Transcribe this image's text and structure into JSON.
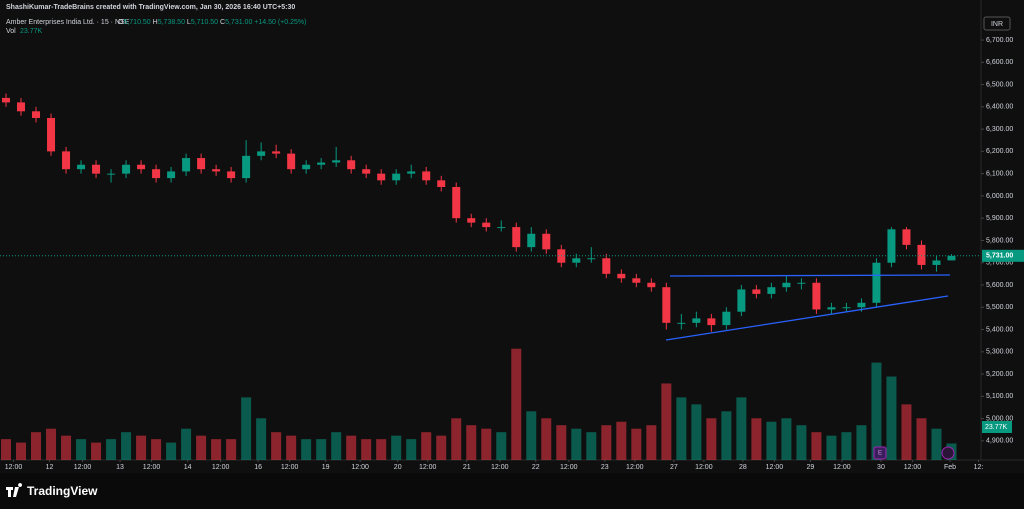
{
  "watermark": "ShashiKumar-TradeBrains created with TradingView.com, Jan 30, 2026 16:40 UTC+5:30",
  "chart_data": {
    "type": "candlestick",
    "title": "Amber Enterprises India Ltd. · 15 · NSE",
    "legend_values": [
      {
        "label": "O",
        "text": "5,710.50"
      },
      {
        "label": "H",
        "text": "5,738.50"
      },
      {
        "label": "L",
        "text": "5,710.50"
      },
      {
        "label": "C",
        "text": "5,731.00"
      }
    ],
    "change": "+14.50 (+0.25%)",
    "volume_title": "Vol",
    "volume_text": "23.77K",
    "currency": "INR",
    "up_color": "#089981",
    "down_color": "#f23645",
    "open": [
      6440,
      6420,
      6380,
      6350,
      6200,
      6120,
      6140,
      6100,
      6100,
      6140,
      6120,
      6080,
      6110,
      6170,
      6120,
      6110,
      6080,
      6180,
      6200,
      6190,
      6120,
      6140,
      6150,
      6160,
      6120,
      6100,
      6070,
      6100,
      6110,
      6070,
      6040,
      5900,
      5880,
      5860,
      5860,
      5770,
      5830,
      5760,
      5700,
      5720,
      5720,
      5650,
      5630,
      5610,
      5590,
      5430,
      5430,
      5450,
      5420,
      5480,
      5580,
      5560,
      5590,
      5610,
      5610,
      5490,
      5500,
      5500,
      5520,
      5700,
      5850,
      5780,
      5690,
      5710.5
    ],
    "high": [
      6460,
      6440,
      6400,
      6370,
      6220,
      6160,
      6160,
      6120,
      6160,
      6160,
      6140,
      6130,
      6190,
      6190,
      6140,
      6130,
      6250,
      6240,
      6230,
      6210,
      6160,
      6170,
      6220,
      6180,
      6140,
      6120,
      6120,
      6140,
      6130,
      6090,
      6060,
      5920,
      5900,
      5890,
      5880,
      5860,
      5850,
      5780,
      5740,
      5770,
      5740,
      5670,
      5650,
      5630,
      5610,
      5470,
      5480,
      5470,
      5500,
      5600,
      5600,
      5610,
      5640,
      5630,
      5630,
      5520,
      5520,
      5540,
      5720,
      5860,
      5860,
      5800,
      5730,
      5738.5
    ],
    "low": [
      6400,
      6360,
      6330,
      6180,
      6100,
      6100,
      6080,
      6060,
      6080,
      6100,
      6060,
      6060,
      6090,
      6100,
      6090,
      6060,
      6060,
      6160,
      6170,
      6100,
      6100,
      6120,
      6130,
      6100,
      6080,
      6050,
      6050,
      6080,
      6050,
      6020,
      5880,
      5860,
      5840,
      5840,
      5750,
      5750,
      5740,
      5680,
      5680,
      5700,
      5630,
      5610,
      5590,
      5570,
      5400,
      5400,
      5410,
      5390,
      5400,
      5460,
      5540,
      5540,
      5570,
      5580,
      5470,
      5470,
      5480,
      5480,
      5500,
      5680,
      5760,
      5670,
      5660,
      5710.5
    ],
    "close": [
      6420,
      6380,
      6350,
      6200,
      6120,
      6140,
      6100,
      6100,
      6140,
      6120,
      6080,
      6110,
      6170,
      6120,
      6110,
      6080,
      6180,
      6200,
      6190,
      6120,
      6140,
      6150,
      6160,
      6120,
      6100,
      6070,
      6100,
      6110,
      6070,
      6040,
      5900,
      5880,
      5860,
      5860,
      5770,
      5830,
      5760,
      5700,
      5720,
      5720,
      5650,
      5630,
      5610,
      5590,
      5430,
      5430,
      5450,
      5420,
      5480,
      5580,
      5560,
      5590,
      5610,
      5610,
      5490,
      5500,
      5500,
      5520,
      5700,
      5850,
      5780,
      5690,
      5710,
      5731
    ],
    "volume": [
      30,
      25,
      40,
      45,
      35,
      30,
      25,
      30,
      40,
      35,
      30,
      25,
      45,
      35,
      30,
      30,
      90,
      60,
      40,
      35,
      30,
      30,
      40,
      35,
      30,
      30,
      35,
      30,
      40,
      35,
      60,
      50,
      45,
      40,
      160,
      70,
      60,
      50,
      45,
      40,
      50,
      55,
      45,
      50,
      110,
      90,
      80,
      60,
      70,
      90,
      60,
      55,
      60,
      50,
      40,
      35,
      40,
      50,
      140,
      120,
      80,
      60,
      45,
      23.77
    ],
    "vlim": [
      0,
      230
    ],
    "last_price": {
      "value": 5731,
      "label": "5,731.00"
    },
    "ylim": [
      4814,
      6799
    ],
    "yticks": [
      {
        "value": 4900,
        "label": "4,900.00"
      },
      {
        "value": 5000,
        "label": "5,000.00"
      },
      {
        "value": 5100,
        "label": "5,100.00"
      },
      {
        "value": 5200,
        "label": "5,200.00"
      },
      {
        "value": 5300,
        "label": "5,300.00"
      },
      {
        "value": 5400,
        "label": "5,400.00"
      },
      {
        "value": 5500,
        "label": "5,500.00"
      },
      {
        "value": 5600,
        "label": "5,600.00"
      },
      {
        "value": 5700,
        "label": "5,700.00"
      },
      {
        "value": 5800,
        "label": "5,800.00"
      },
      {
        "value": 5900,
        "label": "5,900.00"
      },
      {
        "value": 6000,
        "label": "6,000.00"
      },
      {
        "value": 6100,
        "label": "6,100.00"
      },
      {
        "value": 6200,
        "label": "6,200.00"
      },
      {
        "value": 6300,
        "label": "6,300.00"
      },
      {
        "value": 6400,
        "label": "6,400.00"
      },
      {
        "value": 6500,
        "label": "6,500.00"
      },
      {
        "value": 6600,
        "label": "6,600.00"
      },
      {
        "value": 6700,
        "label": "6,700.00"
      }
    ],
    "xlim": [
      -0.4,
      64.9
    ],
    "xticks": [
      {
        "value": 0.5,
        "label": "12:00"
      },
      {
        "value": 2.9,
        "label": "12"
      },
      {
        "value": 5.1,
        "label": "12:00"
      },
      {
        "value": 7.6,
        "label": "13"
      },
      {
        "value": 9.7,
        "label": "12:00"
      },
      {
        "value": 12.1,
        "label": "14"
      },
      {
        "value": 14.3,
        "label": "12:00"
      },
      {
        "value": 16.8,
        "label": "16"
      },
      {
        "value": 18.9,
        "label": "12:00"
      },
      {
        "value": 21.3,
        "label": "19"
      },
      {
        "value": 23.6,
        "label": "12:00"
      },
      {
        "value": 26.1,
        "label": "20"
      },
      {
        "value": 28.1,
        "label": "12:00"
      },
      {
        "value": 30.7,
        "label": "21"
      },
      {
        "value": 32.9,
        "label": "12:00"
      },
      {
        "value": 35.3,
        "label": "22"
      },
      {
        "value": 37.5,
        "label": "12:00"
      },
      {
        "value": 39.9,
        "label": "23"
      },
      {
        "value": 41.9,
        "label": "12:00"
      },
      {
        "value": 44.5,
        "label": "27"
      },
      {
        "value": 46.5,
        "label": "12:00"
      },
      {
        "value": 49.1,
        "label": "28"
      },
      {
        "value": 51.2,
        "label": "12:00"
      },
      {
        "value": 53.6,
        "label": "29"
      },
      {
        "value": 55.7,
        "label": "12:00"
      },
      {
        "value": 58.3,
        "label": "30"
      },
      {
        "value": 60.4,
        "label": "12:00"
      },
      {
        "value": 62.9,
        "label": "Feb"
      },
      {
        "value": 64.8,
        "label": "12:"
      }
    ]
  },
  "footer": {
    "logo": "TradingView"
  }
}
